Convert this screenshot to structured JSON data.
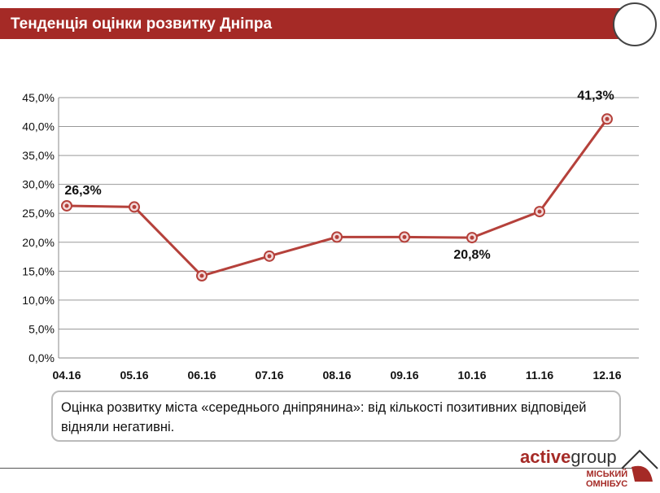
{
  "header": {
    "title": "Тенденція оцінки розвитку Дніпра"
  },
  "chart_data": {
    "type": "line",
    "categories": [
      "04.16",
      "05.16",
      "06.16",
      "07.16",
      "08.16",
      "09.16",
      "10.16",
      "11.16",
      "12.16"
    ],
    "values": [
      26.3,
      26.1,
      14.2,
      17.6,
      20.9,
      20.9,
      20.8,
      25.3,
      41.3
    ],
    "ylim": [
      0,
      45
    ],
    "yticks": [
      "0,0%",
      "5,0%",
      "10,0%",
      "15,0%",
      "20,0%",
      "25,0%",
      "30,0%",
      "35,0%",
      "40,0%",
      "45,0%"
    ],
    "data_labels": [
      {
        "index": 0,
        "text": "26,3%"
      },
      {
        "index": 6,
        "text": "20,8%"
      },
      {
        "index": 8,
        "text": "41,3%"
      }
    ],
    "grid": true,
    "color": "#b5413b"
  },
  "note": {
    "text": "Оцінка розвитку міста «середнього  дніпрянина»: від кількості позитивних відповідей відняли негативні."
  },
  "logo": {
    "brand_bold": "active",
    "brand_rest": "group",
    "sub1": "МІСЬКИЙ",
    "sub2": "ОМНІБУС"
  }
}
